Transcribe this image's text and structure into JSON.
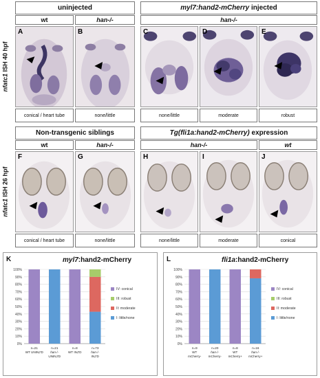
{
  "top_section": {
    "left_header": "uninjected",
    "right_header_italic": "myl7:hand2-mCherry",
    "right_header_rest": " injected",
    "sub_wt": "wt",
    "sub_han_left": "han-/-",
    "sub_han_right": "han-/-",
    "side_label_italic": "nfatc1",
    "side_label_rest": " ISH 40 hpf",
    "panels": [
      {
        "letter": "A",
        "caption": "conical / heart tube"
      },
      {
        "letter": "B",
        "caption": "none/little"
      },
      {
        "letter": "C",
        "caption": "none/little"
      },
      {
        "letter": "D",
        "caption": "moderate"
      },
      {
        "letter": "E",
        "caption": "robust"
      }
    ]
  },
  "middle_section": {
    "left_header": "Non-transgenic siblings",
    "right_header_italic": "Tg(fli1a:hand2-mCherry)",
    "right_header_rest": " expression",
    "sub_wt": "wt",
    "sub_han_left": "han-/-",
    "sub_han_right": "han-/-",
    "sub_wt_right": "wt",
    "side_label_italic": "nfatc1",
    "side_label_rest": " ISH 26 hpf",
    "panels": [
      {
        "letter": "F",
        "caption": "conical / heart tube"
      },
      {
        "letter": "G",
        "caption": "none/little"
      },
      {
        "letter": "H",
        "caption": "none/little"
      },
      {
        "letter": "I",
        "caption": "moderate"
      },
      {
        "letter": "J",
        "caption": "conical"
      }
    ]
  },
  "colors": {
    "conical": "#9c86c4",
    "robust": "#a6cc6a",
    "moderate": "#dd6860",
    "little": "#5b9bd5"
  },
  "chart_data": [
    {
      "letter": "K",
      "type": "bar",
      "stacked": true,
      "title_italic": "myl7",
      "title_rest": ":hand2-mCherry",
      "categories": [
        [
          "n=21",
          "WT UNINJ'D"
        ],
        [
          "n=21",
          "han-/-",
          "UNINJ'D"
        ],
        [
          "n=8",
          "WT INJ'D"
        ],
        [
          "n=73",
          "han-/-",
          "INJ'D"
        ]
      ],
      "series": [
        {
          "name": "I: little/none",
          "color": "#5b9bd5",
          "values": [
            0,
            100,
            0,
            43
          ]
        },
        {
          "name": "II: moderate",
          "color": "#dd6860",
          "values": [
            0,
            0,
            0,
            47
          ]
        },
        {
          "name": "III: robust",
          "color": "#a6cc6a",
          "values": [
            0,
            0,
            0,
            10
          ]
        },
        {
          "name": "IV: conical",
          "color": "#9c86c4",
          "values": [
            100,
            0,
            100,
            0
          ]
        }
      ],
      "legend_order": [
        "IV: conical",
        "III: robust",
        "II: moderate",
        "I: little/none"
      ],
      "ylim": [
        0,
        100
      ],
      "yticks": [
        "0%",
        "10%",
        "20%",
        "30%",
        "40%",
        "50%",
        "60%",
        "70%",
        "80%",
        "90%",
        "100%"
      ],
      "legend_position": "right"
    },
    {
      "letter": "L",
      "type": "bar",
      "stacked": true,
      "title_italic": "fli1a",
      "title_rest": ":hand2-mCherry",
      "categories": [
        [
          "n=9",
          "WT",
          "mCherry-"
        ],
        [
          "n=20",
          "han-/-",
          "mCherry-"
        ],
        [
          "n=8",
          "WT",
          "mCherry+"
        ],
        [
          "n=16",
          "han-/-",
          "mCherry+"
        ]
      ],
      "series": [
        {
          "name": "I: little/none",
          "color": "#5b9bd5",
          "values": [
            0,
            100,
            0,
            88
          ]
        },
        {
          "name": "II: moderate",
          "color": "#dd6860",
          "values": [
            0,
            0,
            0,
            12
          ]
        },
        {
          "name": "III: robust",
          "color": "#a6cc6a",
          "values": [
            0,
            0,
            0,
            0
          ]
        },
        {
          "name": "IV: conical",
          "color": "#9c86c4",
          "values": [
            100,
            0,
            100,
            0
          ]
        }
      ],
      "legend_order": [
        "IV: conical",
        "III: robust",
        "II: moderate",
        "I: little/none"
      ],
      "ylim": [
        0,
        100
      ],
      "yticks": [
        "0%",
        "10%",
        "20%",
        "30%",
        "40%",
        "50%",
        "60%",
        "70%",
        "80%",
        "90%",
        "100%"
      ],
      "legend_position": "right"
    }
  ]
}
